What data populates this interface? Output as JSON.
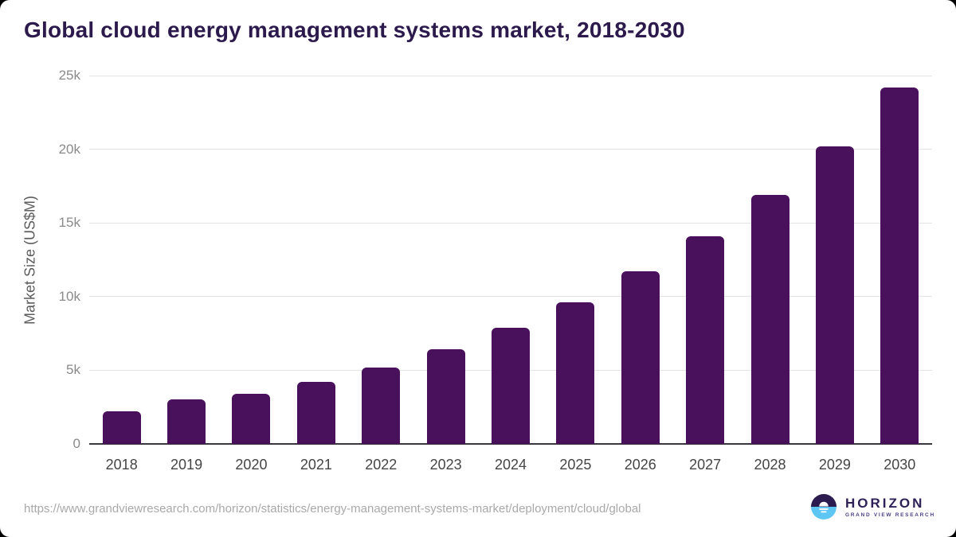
{
  "page": {
    "title": "Global cloud energy management systems market, 2018-2030",
    "source_url": "https://www.grandviewresearch.com/horizon/statistics/energy-management-systems-market/deployment/cloud/global",
    "brand": {
      "name": "HORIZON",
      "tagline": "GRAND VIEW RESEARCH"
    }
  },
  "chart_data": {
    "type": "bar",
    "title": "Global cloud energy management systems market, 2018-2030",
    "categories": [
      "2018",
      "2019",
      "2020",
      "2021",
      "2022",
      "2023",
      "2024",
      "2025",
      "2026",
      "2027",
      "2028",
      "2029",
      "2030"
    ],
    "values": [
      2200,
      3000,
      3400,
      4200,
      5200,
      6400,
      7900,
      9600,
      11700,
      14100,
      16900,
      20200,
      24200
    ],
    "xlabel": "",
    "ylabel": "Market Size (US$M)",
    "ylim": [
      0,
      25000
    ],
    "yticks": [
      {
        "value": 0,
        "label": "0"
      },
      {
        "value": 5000,
        "label": "5k"
      },
      {
        "value": 10000,
        "label": "10k"
      },
      {
        "value": 15000,
        "label": "15k"
      },
      {
        "value": 20000,
        "label": "20k"
      },
      {
        "value": 25000,
        "label": "25k"
      }
    ],
    "grid": true,
    "legend": false,
    "bar_color": "#49105c"
  },
  "colors": {
    "title_text": "#2d1a4d",
    "bar": "#49105c",
    "gridline": "#e4e4e4",
    "axis_line": "#3a3740",
    "ytick_text": "#8a8a8a",
    "xtick_text": "#454545",
    "source_text": "#a9a9a9",
    "logo_dark": "#2b1b4e",
    "logo_blue": "#5ec6f2"
  }
}
